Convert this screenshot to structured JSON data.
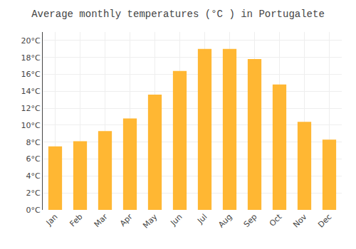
{
  "chart_data": {
    "type": "bar",
    "title": "Average monthly temperatures (°C ) in Portugalete",
    "categories": [
      "Jan",
      "Feb",
      "Mar",
      "Apr",
      "May",
      "Jun",
      "Jul",
      "Aug",
      "Sep",
      "Oct",
      "Nov",
      "Dec"
    ],
    "values": [
      7.5,
      8.1,
      9.3,
      10.8,
      13.6,
      16.4,
      19.0,
      19.0,
      17.8,
      14.8,
      10.4,
      8.3
    ],
    "color": "#FFB733",
    "ylim": [
      0,
      21
    ],
    "yticks": [
      {
        "value": 0,
        "label": "0°C"
      },
      {
        "value": 2,
        "label": "2°C"
      },
      {
        "value": 4,
        "label": "4°C"
      },
      {
        "value": 6,
        "label": "6°C"
      },
      {
        "value": 8,
        "label": "8°C"
      },
      {
        "value": 10,
        "label": "10°C"
      },
      {
        "value": 12,
        "label": "12°C"
      },
      {
        "value": 14,
        "label": "14°C"
      },
      {
        "value": 16,
        "label": "16°C"
      },
      {
        "value": 18,
        "label": "18°C"
      },
      {
        "value": 20,
        "label": "20°C"
      }
    ],
    "grid": true
  }
}
